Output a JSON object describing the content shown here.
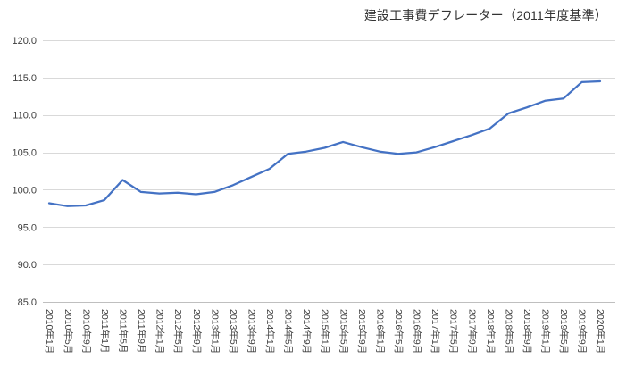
{
  "title": "建設工事費デフレーター（2011年度基準）",
  "chart_data": {
    "type": "line",
    "title": "建設工事費デフレーター（2011年度基準）",
    "categories": [
      "2010年1月",
      "2010年5月",
      "2010年9月",
      "2011年1月",
      "2011年5月",
      "2011年9月",
      "2012年1月",
      "2012年5月",
      "2012年9月",
      "2013年1月",
      "2013年5月",
      "2013年9月",
      "2014年1月",
      "2014年5月",
      "2014年9月",
      "2015年1月",
      "2015年5月",
      "2015年9月",
      "2016年1月",
      "2016年5月",
      "2016年9月",
      "2017年1月",
      "2017年5月",
      "2017年9月",
      "2018年1月",
      "2018年5月",
      "2018年9月",
      "2019年1月",
      "2019年5月",
      "2019年9月",
      "2020年1月"
    ],
    "values": [
      98.2,
      97.8,
      97.9,
      98.6,
      101.3,
      99.7,
      99.5,
      99.6,
      99.4,
      99.7,
      100.6,
      101.7,
      102.8,
      104.8,
      105.1,
      105.6,
      106.4,
      105.7,
      105.1,
      104.8,
      105.0,
      105.7,
      106.5,
      107.3,
      108.2,
      110.2,
      111.0,
      111.9,
      112.2,
      114.4,
      114.5
    ],
    "xlabel": "",
    "ylabel": "",
    "ylim": [
      85,
      120
    ],
    "ytick_step": 5,
    "ytick_labels": [
      "120.0",
      "115.0",
      "110.0",
      "105.0",
      "100.0",
      "95.0",
      "90.0",
      "85.0"
    ],
    "grid": true,
    "legend": "none",
    "colors": {
      "line": "#4472C4",
      "gridline": "#D9D9D9",
      "axis_line": "#BFBFBF",
      "text": "#404040",
      "background": "#FFFFFF"
    }
  }
}
